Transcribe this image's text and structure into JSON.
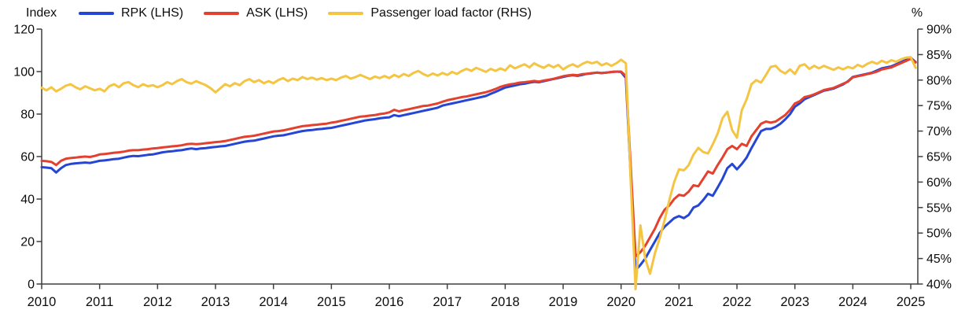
{
  "chart_data": {
    "type": "line",
    "title": "",
    "legend_position": "top",
    "grid": false,
    "left_axis": {
      "unit": "Index",
      "min": 0,
      "max": 120,
      "ticks": [
        0,
        20,
        40,
        60,
        80,
        100,
        120
      ]
    },
    "right_axis": {
      "unit": "%",
      "min": 40,
      "max": 90,
      "ticks": [
        40,
        45,
        50,
        55,
        60,
        65,
        70,
        75,
        80,
        85,
        90
      ],
      "tick_suffix": "%"
    },
    "x_axis": {
      "ticks": [
        2010,
        2011,
        2012,
        2013,
        2014,
        2015,
        2016,
        2017,
        2018,
        2019,
        2020,
        2021,
        2022,
        2023,
        2024,
        2025
      ],
      "start_year": 2010,
      "frequency": "monthly",
      "last_point": "2025-02"
    },
    "colors": {
      "rpk": "#2545d4",
      "ask": "#e4402f",
      "load_factor": "#f4c542",
      "axis": "#3f3f3f",
      "text": "#0d0d0d"
    },
    "series": [
      {
        "name": "RPK (LHS)",
        "axis": "left",
        "color": "#2545d4",
        "values": [
          55.0,
          54.8,
          54.5,
          52.5,
          54.5,
          56.0,
          56.5,
          56.8,
          57.0,
          57.2,
          57.0,
          57.5,
          58.0,
          58.2,
          58.5,
          58.8,
          59.0,
          59.5,
          60.0,
          60.3,
          60.2,
          60.5,
          60.8,
          61.0,
          61.5,
          62.0,
          62.3,
          62.5,
          62.8,
          63.0,
          63.5,
          63.8,
          63.5,
          63.8,
          64.0,
          64.3,
          64.5,
          64.8,
          65.0,
          65.5,
          66.0,
          66.5,
          67.0,
          67.3,
          67.5,
          68.0,
          68.5,
          69.0,
          69.5,
          69.8,
          70.0,
          70.5,
          71.0,
          71.5,
          72.0,
          72.3,
          72.5,
          72.8,
          73.0,
          73.3,
          73.5,
          74.0,
          74.5,
          75.0,
          75.5,
          76.0,
          76.5,
          77.0,
          77.3,
          77.6,
          78.0,
          78.3,
          78.5,
          79.5,
          79.0,
          79.5,
          80.0,
          80.5,
          81.0,
          81.5,
          82.0,
          82.5,
          83.0,
          84.0,
          84.5,
          85.0,
          85.5,
          86.0,
          86.5,
          87.0,
          87.5,
          88.0,
          88.5,
          89.5,
          90.5,
          91.5,
          92.5,
          93.0,
          93.5,
          94.0,
          94.3,
          94.8,
          95.2,
          95.0,
          95.5,
          96.0,
          96.5,
          97.0,
          97.5,
          98.0,
          98.3,
          98.0,
          98.5,
          99.0,
          99.2,
          99.5,
          99.3,
          99.5,
          99.8,
          100.0,
          99.8,
          97.0,
          50.0,
          6.5,
          9.0,
          12.0,
          16.0,
          20.0,
          24.0,
          27.0,
          29.0,
          31.0,
          32.0,
          31.0,
          32.5,
          36.0,
          37.0,
          39.5,
          42.5,
          41.5,
          45.5,
          49.5,
          54.5,
          56.5,
          54.0,
          56.5,
          59.5,
          64.0,
          68.0,
          72.0,
          73.0,
          73.0,
          74.0,
          75.5,
          77.5,
          80.0,
          83.5,
          85.0,
          87.0,
          88.0,
          89.0,
          90.0,
          91.0,
          91.5,
          92.0,
          93.0,
          94.0,
          95.5,
          97.5,
          98.0,
          98.5,
          99.0,
          99.5,
          100.5,
          101.5,
          102.0,
          102.5,
          103.5,
          104.5,
          105.5,
          106.5,
          104.5
        ]
      },
      {
        "name": "ASK (LHS)",
        "axis": "left",
        "color": "#e4402f",
        "values": [
          58.0,
          57.8,
          57.5,
          56.0,
          58.0,
          59.0,
          59.3,
          59.5,
          59.8,
          60.0,
          59.8,
          60.3,
          61.0,
          61.2,
          61.5,
          61.8,
          62.0,
          62.3,
          62.8,
          63.0,
          63.0,
          63.3,
          63.5,
          63.8,
          64.0,
          64.3,
          64.5,
          64.8,
          65.0,
          65.3,
          65.8,
          66.0,
          65.8,
          66.0,
          66.3,
          66.5,
          66.8,
          67.0,
          67.3,
          67.8,
          68.3,
          68.8,
          69.3,
          69.5,
          69.8,
          70.3,
          70.8,
          71.3,
          71.8,
          72.0,
          72.3,
          72.8,
          73.3,
          73.8,
          74.3,
          74.5,
          74.8,
          75.0,
          75.3,
          75.5,
          76.0,
          76.3,
          76.8,
          77.3,
          77.8,
          78.3,
          78.8,
          79.0,
          79.3,
          79.5,
          80.0,
          80.3,
          80.8,
          82.0,
          81.3,
          81.8,
          82.3,
          82.8,
          83.3,
          83.8,
          84.0,
          84.5,
          85.0,
          85.8,
          86.5,
          87.0,
          87.5,
          88.0,
          88.3,
          88.8,
          89.3,
          89.8,
          90.3,
          91.0,
          91.8,
          92.8,
          93.5,
          94.0,
          94.3,
          94.8,
          95.0,
          95.3,
          95.6,
          95.3,
          95.8,
          96.2,
          96.6,
          97.2,
          97.8,
          98.2,
          98.5,
          98.3,
          98.8,
          99.0,
          99.3,
          99.5,
          99.3,
          99.5,
          99.8,
          100.0,
          100.0,
          98.0,
          55.0,
          13.0,
          15.0,
          18.0,
          22.0,
          26.0,
          31.0,
          35.0,
          37.0,
          40.0,
          42.0,
          41.5,
          43.5,
          46.5,
          46.0,
          49.5,
          53.0,
          52.0,
          56.0,
          59.5,
          63.5,
          65.0,
          63.5,
          66.0,
          65.0,
          69.5,
          72.5,
          75.5,
          76.5,
          76.0,
          76.5,
          78.0,
          79.5,
          82.0,
          85.0,
          86.0,
          88.0,
          88.5,
          89.3,
          90.3,
          91.3,
          91.8,
          92.3,
          93.3,
          94.3,
          95.3,
          97.3,
          97.8,
          98.3,
          98.8,
          99.3,
          100.0,
          101.0,
          101.5,
          102.0,
          103.0,
          104.0,
          105.0,
          106.0,
          104.3
        ]
      },
      {
        "name": "Passenger load factor (RHS)",
        "axis": "right",
        "color": "#f4c542",
        "values": [
          78.5,
          78.0,
          78.6,
          77.8,
          78.3,
          78.9,
          79.2,
          78.6,
          78.2,
          78.8,
          78.4,
          78.0,
          78.3,
          77.8,
          78.8,
          79.2,
          78.6,
          79.4,
          79.6,
          79.0,
          78.6,
          79.2,
          78.8,
          79.0,
          78.6,
          79.0,
          79.6,
          79.2,
          79.8,
          80.2,
          79.6,
          79.3,
          79.8,
          79.4,
          79.0,
          78.4,
          77.6,
          78.4,
          79.2,
          78.8,
          79.4,
          79.0,
          79.8,
          80.2,
          79.6,
          80.0,
          79.4,
          79.8,
          79.4,
          80.0,
          80.4,
          79.8,
          80.3,
          80.0,
          80.6,
          80.2,
          80.5,
          80.1,
          80.4,
          80.0,
          80.3,
          80.0,
          80.5,
          80.8,
          80.3,
          80.6,
          81.0,
          80.6,
          80.2,
          80.7,
          80.4,
          80.8,
          80.4,
          81.0,
          80.6,
          81.2,
          80.8,
          81.4,
          81.8,
          81.2,
          80.8,
          81.3,
          80.9,
          81.4,
          81.0,
          81.6,
          81.2,
          81.8,
          82.2,
          81.8,
          82.4,
          82.0,
          81.6,
          82.2,
          81.8,
          82.3,
          81.9,
          82.9,
          82.3,
          82.7,
          83.1,
          82.5,
          83.3,
          82.8,
          82.4,
          83.0,
          82.5,
          83.0,
          82.1,
          82.7,
          83.1,
          82.6,
          83.2,
          83.6,
          83.3,
          83.6,
          82.9,
          83.3,
          82.8,
          83.3,
          84.0,
          83.3,
          60.0,
          39.0,
          51.5,
          45.0,
          42.0,
          46.0,
          49.0,
          52.5,
          56.5,
          60.0,
          62.5,
          62.3,
          63.3,
          65.4,
          66.7,
          65.9,
          65.6,
          67.4,
          69.5,
          72.5,
          73.8,
          70.2,
          68.7,
          74.1,
          76.2,
          79.2,
          80.0,
          79.5,
          81.0,
          82.6,
          82.8,
          81.8,
          81.3,
          82.1,
          81.2,
          82.8,
          83.1,
          82.2,
          82.8,
          82.3,
          82.8,
          82.4,
          82.0,
          82.5,
          82.1,
          82.6,
          82.3,
          83.0,
          82.6,
          83.2,
          83.6,
          83.2,
          83.8,
          83.4,
          83.9,
          83.6,
          84.1,
          84.4,
          84.5,
          82.4
        ]
      }
    ]
  }
}
